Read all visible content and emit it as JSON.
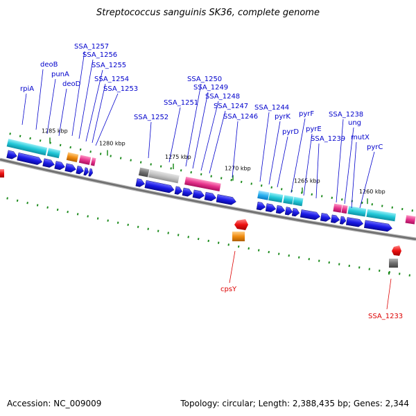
{
  "title": "Streptococcus sanguinis SK36, complete genome",
  "footer": {
    "accession": "Accession: NC_009009",
    "summary": "Topology: circular; Length: 2,388,435 bp; Genes: 2,344"
  },
  "ticks": [
    "1285 kbp",
    "1280 kbp",
    "1275 kbp",
    "1270 kbp",
    "1265 kbp",
    "1260 kbp"
  ],
  "labels_top": [
    "rpiA",
    "deoB",
    "punA",
    "deoD",
    "SSA_1257",
    "SSA_1256",
    "SSA_1255",
    "SSA_1254",
    "SSA_1253",
    "SSA_1252",
    "SSA_1251",
    "SSA_1250",
    "SSA_1249",
    "SSA_1248",
    "SSA_1247",
    "SSA_1246",
    "SSA_1244",
    "pyrK",
    "pyrD",
    "pyrF",
    "pyrE",
    "SSA_1239",
    "SSA_1238",
    "ung",
    "mutX",
    "pyrC"
  ],
  "labels_bottom": [
    "cpsY",
    "SSA_1233"
  ],
  "colors": {
    "gene_label": "#0000cc",
    "gene_label_red": "#dd0000",
    "forward_cds": "#1a1ae6",
    "cyan_feature": "#22c8d8",
    "magenta_feature": "#e6338c",
    "orange_feature": "#f08c10",
    "grey_feature": "#8c8c8c",
    "red_feature": "#ee1111",
    "tick": "#1e8c1e",
    "backbone": "#6e6e6e"
  }
}
